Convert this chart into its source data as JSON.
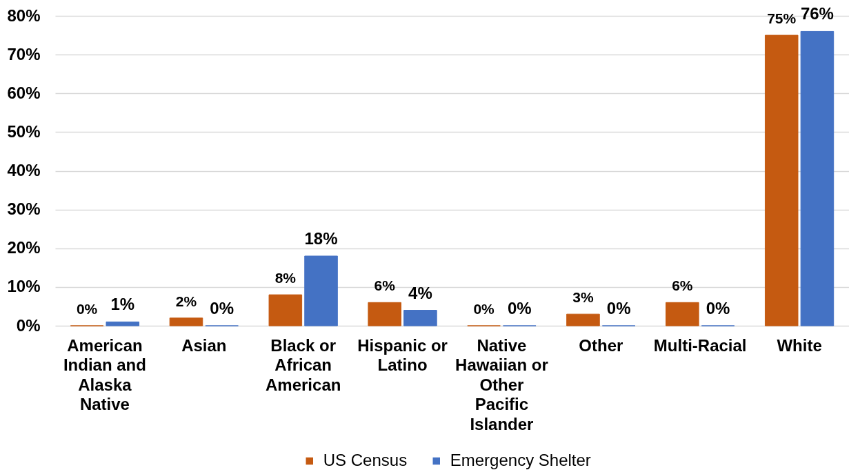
{
  "chart_data": {
    "type": "bar",
    "categories": [
      "American Indian and Alaska Native",
      "Asian",
      "Black or African American",
      "Hispanic or Latino",
      "Native Hawaiian or Other Pacific Islander",
      "Other",
      "Multi-Racial",
      "White"
    ],
    "series": [
      {
        "name": "US Census",
        "color": "#c55a11",
        "values": [
          0,
          2,
          8,
          6,
          0,
          3,
          6,
          75
        ],
        "value_labels": [
          "0%",
          "2%",
          "8%",
          "6%",
          "0%",
          "3%",
          "6%",
          "75%"
        ]
      },
      {
        "name": "Emergency Shelter",
        "color": "#4472c4",
        "values": [
          1,
          0,
          18,
          4,
          0,
          0,
          0,
          76
        ],
        "value_labels": [
          "1%",
          "0%",
          "18%",
          "4%",
          "0%",
          "0%",
          "0%",
          "76%"
        ]
      }
    ],
    "ylim": [
      0,
      80
    ],
    "yticks": [
      {
        "value": 0,
        "label": "0%"
      },
      {
        "value": 10,
        "label": "10%"
      },
      {
        "value": 20,
        "label": "20%"
      },
      {
        "value": 30,
        "label": "30%"
      },
      {
        "value": 40,
        "label": "40%"
      },
      {
        "value": 50,
        "label": "50%"
      },
      {
        "value": 60,
        "label": "60%"
      },
      {
        "value": 70,
        "label": "70%"
      },
      {
        "value": 80,
        "label": "80%"
      }
    ],
    "grid": "y",
    "legend": "bottom"
  }
}
